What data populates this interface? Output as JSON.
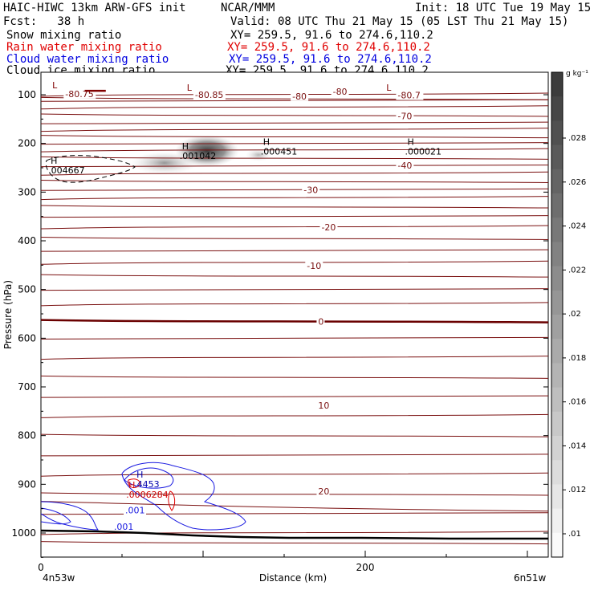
{
  "header": {
    "model": "HAIC-HIWC 13km ARW-GFS init",
    "org": "NCAR/MMM",
    "init": "Init: 18 UTC Tue 19 May 15",
    "fcst": "Fcst:   38 h",
    "valid": "Valid: 08 UTC Thu 21 May 15 (05 LST Thu 21 May 15)",
    "fields": [
      {
        "label": "Snow mixing ratio",
        "xy": "XY= 259.5, 91.6 to 274.6,110.2",
        "color": "#000000"
      },
      {
        "label": "Rain water mixing ratio",
        "xy": "XY= 259.5, 91.6 to 274.6,110.2",
        "color": "#ff0000"
      },
      {
        "label": "Cloud water mixing ratio",
        "xy": "XY= 259.5, 91.6 to 274.6,110.2",
        "color": "#0000ff"
      },
      {
        "label": "Cloud ice mixing ratio",
        "xy": "XY= 259.5, 91.6 to 274.6,110.2",
        "color": "#000000"
      }
    ]
  },
  "chart_data": {
    "type": "cross-section contour",
    "ylabel": "Pressure (hPa)",
    "xlabel": "Distance (km)",
    "y_ticks": [
      100,
      200,
      300,
      400,
      500,
      600,
      700,
      800,
      900,
      1000
    ],
    "x_ticks": [
      0,
      200
    ],
    "ylim": [
      1050,
      50
    ],
    "xlim": [
      0,
      313
    ],
    "left_endpoint": "4n53w",
    "right_endpoint": "6n51w",
    "temperature_contour_labels": [
      {
        "text": "-80.75",
        "x": 15,
        "p": 98
      },
      {
        "text": "-80.85",
        "x": 95,
        "p": 100
      },
      {
        "text": "-80",
        "x": 155,
        "p": 103
      },
      {
        "text": "-80",
        "x": 180,
        "p": 93
      },
      {
        "text": "-80.7",
        "x": 220,
        "p": 101
      },
      {
        "text": "-70",
        "x": 220,
        "p": 144
      },
      {
        "text": "-40",
        "x": 220,
        "p": 245
      },
      {
        "text": "-30",
        "x": 162,
        "p": 295
      },
      {
        "text": "-20",
        "x": 173,
        "p": 372
      },
      {
        "text": "-10",
        "x": 164,
        "p": 451
      },
      {
        "text": "0",
        "x": 171,
        "p": 566
      },
      {
        "text": "10",
        "x": 171,
        "p": 738
      },
      {
        "text": "20",
        "x": 171,
        "p": 914
      }
    ],
    "extrema_labels": [
      {
        "marker": "L",
        "value": "",
        "x": 7,
        "p": 87,
        "color": "#800000"
      },
      {
        "marker": "L",
        "value": "",
        "x": 90,
        "p": 92,
        "color": "#800000"
      },
      {
        "marker": "L",
        "value": "",
        "x": 213,
        "p": 92,
        "color": "#800000"
      },
      {
        "marker": "H",
        "value": ".001042",
        "x": 87,
        "p": 212,
        "color": "#000000"
      },
      {
        "marker": "H",
        "value": ".000451",
        "x": 137,
        "p": 203,
        "color": "#000000"
      },
      {
        "marker": "H",
        "value": ".000021",
        "x": 226,
        "p": 203,
        "color": "#000000"
      },
      {
        "marker": "H",
        "value": ".004667",
        "x": 6,
        "p": 242,
        "color": "#000000"
      },
      {
        "marker": "H",
        "value": ".4453",
        "x": 59,
        "p": 886,
        "color": "#0000aa"
      },
      {
        "marker": "H",
        "value": ".0006284",
        "x": 54,
        "p": 908,
        "color": "#cc0000"
      }
    ],
    "cloud_water_labels": [
      {
        "text": ".001",
        "x": 52,
        "p": 960
      },
      {
        "text": ".001",
        "x": 45,
        "p": 993
      }
    ],
    "colorbar": {
      "unit": "g kg⁻¹",
      "ticks": [
        ".01",
        ".012",
        ".014",
        ".016",
        ".018",
        ".02",
        ".022",
        ".024",
        ".026",
        ".028"
      ]
    }
  }
}
